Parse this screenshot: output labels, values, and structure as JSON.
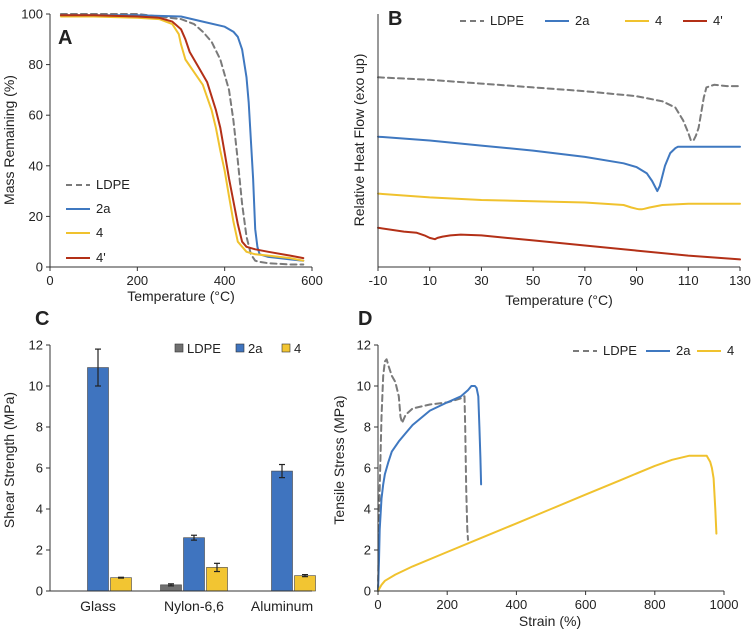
{
  "figure_title": "",
  "colors": {
    "LDPE": "#7a7a7a",
    "2a": "#3f78c0",
    "4": "#f0c22e",
    "4'": "#b33017",
    "bar_LDPE": "#707070",
    "bar_2a": "#3f74bf",
    "bar_4": "#f2c532"
  },
  "chart_data": [
    {
      "id": "A",
      "label": "A",
      "type": "line",
      "xlabel": "Temperature (°C)",
      "ylabel": "Mass Remaining (%)",
      "xlim": [
        0,
        600
      ],
      "ylim": [
        0,
        100
      ],
      "xticks": [
        0,
        200,
        400,
        600
      ],
      "yticks": [
        0,
        20,
        40,
        60,
        80,
        100
      ],
      "legend_position": "lower-left",
      "series": [
        {
          "name": "LDPE",
          "dashed": true,
          "color_key": "LDPE",
          "x": [
            25,
            100,
            200,
            300,
            330,
            350,
            370,
            390,
            410,
            420,
            430,
            440,
            450,
            460,
            470,
            480,
            500,
            550,
            580
          ],
          "y": [
            100,
            100,
            100,
            98,
            96,
            93,
            89,
            82,
            70,
            58,
            42,
            25,
            12,
            5,
            2.5,
            2,
            1.5,
            1,
            1
          ]
        },
        {
          "name": "2a",
          "dashed": false,
          "color_key": "2a",
          "x": [
            25,
            100,
            200,
            300,
            350,
            400,
            420,
            430,
            440,
            450,
            455,
            460,
            465,
            470,
            475,
            480,
            500,
            550,
            580
          ],
          "y": [
            99.5,
            99.5,
            99.5,
            99,
            97,
            95,
            93,
            91,
            86,
            75,
            65,
            50,
            35,
            15,
            8,
            5,
            4,
            3,
            2.5
          ]
        },
        {
          "name": "4",
          "dashed": false,
          "color_key": "4",
          "x": [
            25,
            100,
            200,
            250,
            280,
            295,
            300,
            310,
            330,
            350,
            370,
            380,
            390,
            400,
            410,
            420,
            430,
            450,
            470,
            500,
            550,
            580
          ],
          "y": [
            99,
            99,
            98.5,
            98,
            96,
            92,
            88,
            82,
            77,
            72,
            62,
            55,
            46,
            38,
            28,
            18,
            10,
            6,
            5,
            4.5,
            3.5,
            2.5
          ]
        },
        {
          "name": "4'",
          "dashed": false,
          "color_key": "4'",
          "x": [
            25,
            100,
            200,
            250,
            280,
            300,
            310,
            320,
            340,
            360,
            380,
            390,
            400,
            410,
            420,
            430,
            440,
            450,
            470,
            500,
            550,
            580
          ],
          "y": [
            99.5,
            99.5,
            99,
            98.5,
            97,
            94,
            90,
            85,
            79,
            73,
            62,
            55,
            45,
            35,
            26,
            17,
            10,
            8,
            7,
            6,
            4.5,
            3.5
          ]
        }
      ]
    },
    {
      "id": "B",
      "label": "B",
      "type": "line",
      "xlabel": "Temperature (°C)",
      "ylabel": "Relative Heat Flow (exo up)",
      "xlim": [
        -10,
        130
      ],
      "ylim": [
        0,
        100
      ],
      "xticks": [
        -10,
        10,
        30,
        50,
        70,
        90,
        110,
        130
      ],
      "yticks": [],
      "legend_position": "top",
      "series": [
        {
          "name": "LDPE",
          "dashed": true,
          "color_key": "LDPE",
          "x": [
            -10,
            10,
            30,
            50,
            70,
            90,
            100,
            105,
            108,
            110,
            111,
            112,
            113,
            114,
            115,
            116,
            117,
            120,
            125,
            130
          ],
          "y": [
            75,
            74,
            72.5,
            71,
            69.5,
            67.5,
            65.5,
            63,
            58,
            53,
            50,
            50,
            52,
            55,
            61,
            67,
            71,
            72,
            71.5,
            71.5
          ]
        },
        {
          "name": "2a",
          "dashed": false,
          "color_key": "2a",
          "x": [
            -10,
            10,
            30,
            50,
            70,
            85,
            90,
            94,
            96,
            97,
            98,
            99,
            100,
            101,
            103,
            105,
            106,
            110,
            120,
            130
          ],
          "y": [
            51.5,
            50,
            48,
            46,
            43.5,
            41,
            39.5,
            37,
            34,
            32,
            30,
            32,
            36,
            40,
            45,
            47,
            47.5,
            47.5,
            47.5,
            47.5
          ]
        },
        {
          "name": "4",
          "dashed": false,
          "color_key": "4",
          "x": [
            -10,
            10,
            30,
            50,
            70,
            85,
            88,
            90,
            91,
            92,
            93,
            95,
            100,
            110,
            120,
            130
          ],
          "y": [
            29,
            27.5,
            26.5,
            26,
            25.5,
            24.5,
            23.5,
            23,
            22.8,
            22.8,
            23,
            23.5,
            24.5,
            25,
            25,
            25
          ]
        },
        {
          "name": "4'",
          "dashed": false,
          "color_key": "4'",
          "x": [
            -10,
            0,
            5,
            8,
            10,
            12,
            13,
            15,
            18,
            22,
            30,
            50,
            70,
            90,
            110,
            130
          ],
          "y": [
            15.5,
            14,
            13.5,
            12.5,
            11.5,
            11,
            11.5,
            12,
            12.5,
            12.8,
            12.5,
            10.5,
            8.5,
            6.5,
            4.5,
            3
          ]
        }
      ]
    },
    {
      "id": "C",
      "label": "C",
      "type": "bar",
      "xlabel": "",
      "ylabel": "Shear Strength (MPa)",
      "ylim": [
        0,
        12
      ],
      "yticks": [
        0,
        2,
        4,
        6,
        8,
        10,
        12
      ],
      "categories": [
        "Glass",
        "Nylon-6,6",
        "Aluminum"
      ],
      "legend_position": "top-right",
      "series": [
        {
          "name": "LDPE",
          "color_key": "bar_LDPE",
          "values": [
            null,
            0.3,
            null
          ],
          "errors": [
            null,
            0.05,
            null
          ]
        },
        {
          "name": "2a",
          "color_key": "bar_2a",
          "values": [
            10.9,
            2.6,
            5.85
          ],
          "errors": [
            0.9,
            0.12,
            0.32
          ]
        },
        {
          "name": "4",
          "color_key": "bar_4",
          "values": [
            0.65,
            1.15,
            0.75
          ],
          "errors": [
            0.02,
            0.2,
            0.05
          ]
        }
      ]
    },
    {
      "id": "D",
      "label": "D",
      "type": "line",
      "xlabel": "Strain (%)",
      "ylabel": "Tensile Stress (MPa)",
      "xlim": [
        0,
        1000
      ],
      "ylim": [
        0,
        12
      ],
      "xticks": [
        0,
        200,
        400,
        600,
        800,
        1000
      ],
      "yticks": [
        0,
        2,
        4,
        6,
        8,
        10,
        12
      ],
      "legend_position": "top",
      "series": [
        {
          "name": "LDPE",
          "dashed": true,
          "color_key": "LDPE",
          "x": [
            0,
            5,
            10,
            15,
            20,
            25,
            30,
            40,
            50,
            60,
            65,
            70,
            75,
            80,
            100,
            150,
            200,
            220,
            240,
            250,
            252,
            255,
            258,
            260
          ],
          "y": [
            0,
            5,
            8.5,
            10.5,
            11.2,
            11.3,
            11,
            10.5,
            10.2,
            9.5,
            8.5,
            8.2,
            8.4,
            8.6,
            8.9,
            9.1,
            9.2,
            9.3,
            9.4,
            9.5,
            8,
            5,
            3,
            2.5
          ]
        },
        {
          "name": "2a",
          "dashed": false,
          "color_key": "2a",
          "x": [
            0,
            3,
            5,
            10,
            15,
            20,
            30,
            40,
            60,
            80,
            100,
            150,
            200,
            240,
            260,
            270,
            280,
            285,
            290,
            293,
            296,
            298
          ],
          "y": [
            0,
            1.5,
            3,
            4.5,
            5.2,
            5.7,
            6.3,
            6.8,
            7.3,
            7.7,
            8.1,
            8.8,
            9.2,
            9.5,
            9.8,
            10,
            10,
            9.9,
            9.5,
            8,
            6.5,
            5.2
          ]
        },
        {
          "name": "4",
          "dashed": false,
          "color_key": "4",
          "x": [
            0,
            10,
            20,
            50,
            100,
            200,
            300,
            400,
            500,
            600,
            700,
            800,
            850,
            900,
            950,
            960,
            965,
            970,
            975,
            978
          ],
          "y": [
            0,
            0.3,
            0.5,
            0.8,
            1.2,
            1.9,
            2.6,
            3.3,
            4,
            4.7,
            5.4,
            6.1,
            6.4,
            6.6,
            6.6,
            6.3,
            6.0,
            5.5,
            4,
            2.8
          ]
        }
      ]
    }
  ]
}
